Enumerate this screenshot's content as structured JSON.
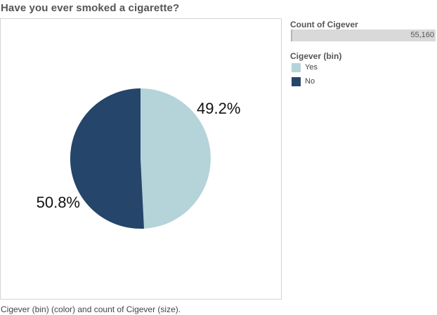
{
  "chart_data": {
    "type": "pie",
    "title": "Have you ever smoked a cigarette?",
    "caption": "Cigever (bin) (color) and count of Cigever (size).",
    "categories": [
      "Yes",
      "No"
    ],
    "values": [
      49.2,
      50.8
    ],
    "labels": [
      "49.2%",
      "50.8%"
    ],
    "colors": [
      "#b5d4da",
      "#25456b"
    ],
    "size_legend": {
      "title": "Count of Cigever",
      "value": "55,160"
    },
    "color_legend": {
      "title": "Cigever (bin)",
      "items": [
        {
          "label": "Yes",
          "color": "#b5d4da"
        },
        {
          "label": "No",
          "color": "#25456b"
        }
      ]
    }
  }
}
